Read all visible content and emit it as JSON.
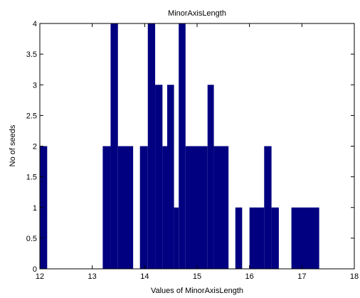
{
  "chart_data": {
    "type": "bar",
    "title": "MinorAxisLength",
    "xlabel": "Values of MinorAxisLength",
    "ylabel": "No of seeds",
    "xlim": [
      12,
      18
    ],
    "ylim": [
      0,
      4
    ],
    "xticks": [
      "12",
      "13",
      "14",
      "15",
      "16",
      "17",
      "18"
    ],
    "yticks": [
      "0",
      "0.5",
      "1",
      "1.5",
      "2",
      "2.5",
      "3",
      "3.5",
      "4"
    ],
    "grid": false,
    "bar_color": "#000080",
    "bins": [
      {
        "start": 12.0,
        "end": 12.14,
        "count": 2
      },
      {
        "start": 13.2,
        "end": 13.35,
        "count": 2
      },
      {
        "start": 13.35,
        "end": 13.49,
        "count": 4
      },
      {
        "start": 13.49,
        "end": 13.78,
        "count": 2
      },
      {
        "start": 13.91,
        "end": 14.06,
        "count": 2
      },
      {
        "start": 14.06,
        "end": 14.2,
        "count": 4
      },
      {
        "start": 14.2,
        "end": 14.34,
        "count": 3
      },
      {
        "start": 14.34,
        "end": 14.43,
        "count": 2
      },
      {
        "start": 14.43,
        "end": 14.56,
        "count": 3
      },
      {
        "start": 14.56,
        "end": 14.65,
        "count": 1
      },
      {
        "start": 14.65,
        "end": 14.78,
        "count": 4
      },
      {
        "start": 14.78,
        "end": 15.2,
        "count": 2
      },
      {
        "start": 15.2,
        "end": 15.32,
        "count": 3
      },
      {
        "start": 15.32,
        "end": 15.6,
        "count": 2
      },
      {
        "start": 15.73,
        "end": 15.86,
        "count": 1
      },
      {
        "start": 16.0,
        "end": 16.28,
        "count": 1
      },
      {
        "start": 16.28,
        "end": 16.42,
        "count": 2
      },
      {
        "start": 16.42,
        "end": 16.56,
        "count": 1
      },
      {
        "start": 16.8,
        "end": 17.33,
        "count": 1
      }
    ]
  }
}
